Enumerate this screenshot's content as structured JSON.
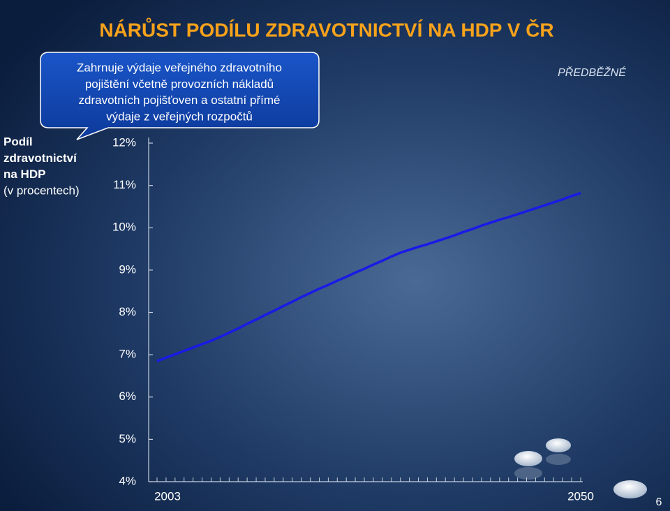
{
  "chart_data": {
    "type": "line",
    "title": "NÁRŮST PODÍLU ZDRAVOTNICTVÍ NA HDP V ČR",
    "annotation": [
      "Zahrnuje výdaje veřejného zdravotního",
      "pojištění včetně provozních nákladů",
      "zdravotních pojišťoven a ostatní přímé",
      "výdaje z veřejných rozpočtů"
    ],
    "stamp": "PŘEDBĚŽNÉ",
    "ylabel": [
      "Podíl",
      "zdravotnictví",
      "na HDP"
    ],
    "ylabel_unit": "(v procentech)",
    "x": [
      2003,
      2004,
      2005,
      2006,
      2007,
      2008,
      2009,
      2010,
      2011,
      2012,
      2013,
      2014,
      2015,
      2016,
      2017,
      2018,
      2019,
      2020,
      2021,
      2022,
      2023,
      2024,
      2025,
      2026,
      2027,
      2028,
      2029,
      2030,
      2031,
      2032,
      2033,
      2034,
      2035,
      2036,
      2037,
      2038,
      2039,
      2040,
      2041,
      2042,
      2043,
      2044,
      2045,
      2046,
      2047,
      2048,
      2049,
      2050
    ],
    "series": [
      {
        "color": "#1a1ae6",
        "values": [
          6.85,
          6.93,
          7.01,
          7.09,
          7.17,
          7.25,
          7.33,
          7.42,
          7.52,
          7.62,
          7.73,
          7.83,
          7.94,
          8.04,
          8.15,
          8.25,
          8.36,
          8.46,
          8.56,
          8.65,
          8.75,
          8.84,
          8.94,
          9.03,
          9.13,
          9.22,
          9.32,
          9.41,
          9.48,
          9.55,
          9.61,
          9.68,
          9.75,
          9.82,
          9.9,
          9.97,
          10.05,
          10.12,
          10.19,
          10.25,
          10.32,
          10.39,
          10.46,
          10.53,
          10.6,
          10.67,
          10.75,
          10.82
        ]
      }
    ],
    "xlim": [
      2002,
      2050
    ],
    "xticks": [
      2003,
      2050
    ],
    "ylim": [
      4,
      12
    ],
    "yticks": [
      {
        "value": 4,
        "label": "4%"
      },
      {
        "value": 5,
        "label": "5%"
      },
      {
        "value": 6,
        "label": "6%"
      },
      {
        "value": 7,
        "label": "7%"
      },
      {
        "value": 8,
        "label": "8%"
      },
      {
        "value": 9,
        "label": "9%"
      },
      {
        "value": 10,
        "label": "10%"
      },
      {
        "value": 11,
        "label": "11%"
      },
      {
        "value": 12,
        "label": "12%"
      }
    ]
  },
  "page_number": "6"
}
